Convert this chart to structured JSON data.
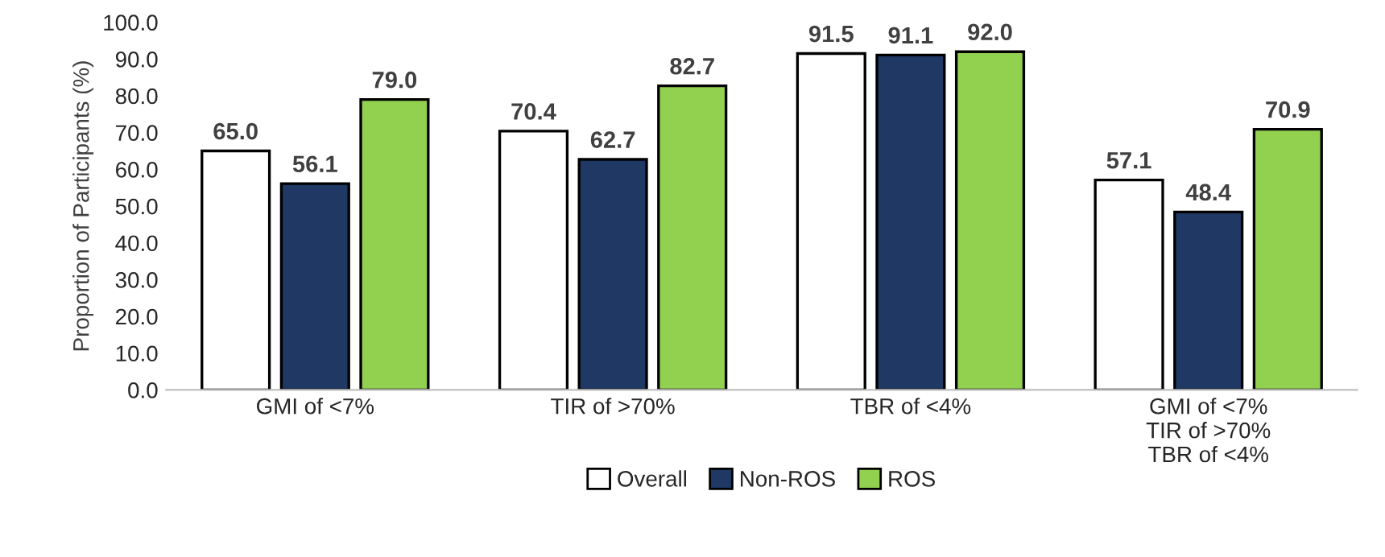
{
  "chart_data": {
    "type": "bar",
    "ylabel": "Proportion of Participants (%)",
    "categories": [
      "GMI of <7%",
      "TIR of >70%",
      "TBR of <4%",
      "GMI of <7%\nTIR of >70%\nTBR of <4%"
    ],
    "series": [
      {
        "name": "Overall",
        "color": "#ffffff",
        "values": [
          65.0,
          70.4,
          91.5,
          57.1
        ],
        "value_labels": [
          "65.0",
          "70.4",
          "91.5",
          "57.1"
        ]
      },
      {
        "name": "Non-ROS",
        "color": "#1f3864",
        "values": [
          56.1,
          62.7,
          91.1,
          48.4
        ],
        "value_labels": [
          "56.1",
          "62.7",
          "91.1",
          "48.4"
        ]
      },
      {
        "name": "ROS",
        "color": "#92d050",
        "values": [
          79.0,
          82.7,
          92.0,
          70.9
        ],
        "value_labels": [
          "79.0",
          "82.7",
          "92.0",
          "70.9"
        ]
      }
    ],
    "ylim": [
      0,
      100
    ],
    "yticks": [
      {
        "value": 0,
        "label": "0.0"
      },
      {
        "value": 10,
        "label": "10.0"
      },
      {
        "value": 20,
        "label": "20.0"
      },
      {
        "value": 30,
        "label": "30.0"
      },
      {
        "value": 40,
        "label": "40.0"
      },
      {
        "value": 50,
        "label": "50.0"
      },
      {
        "value": 60,
        "label": "60.0"
      },
      {
        "value": 70,
        "label": "70.0"
      },
      {
        "value": 80,
        "label": "80.0"
      },
      {
        "value": 90,
        "label": "90.0"
      },
      {
        "value": 100,
        "label": "100.0"
      }
    ],
    "grid": false,
    "legend": "bottom"
  }
}
